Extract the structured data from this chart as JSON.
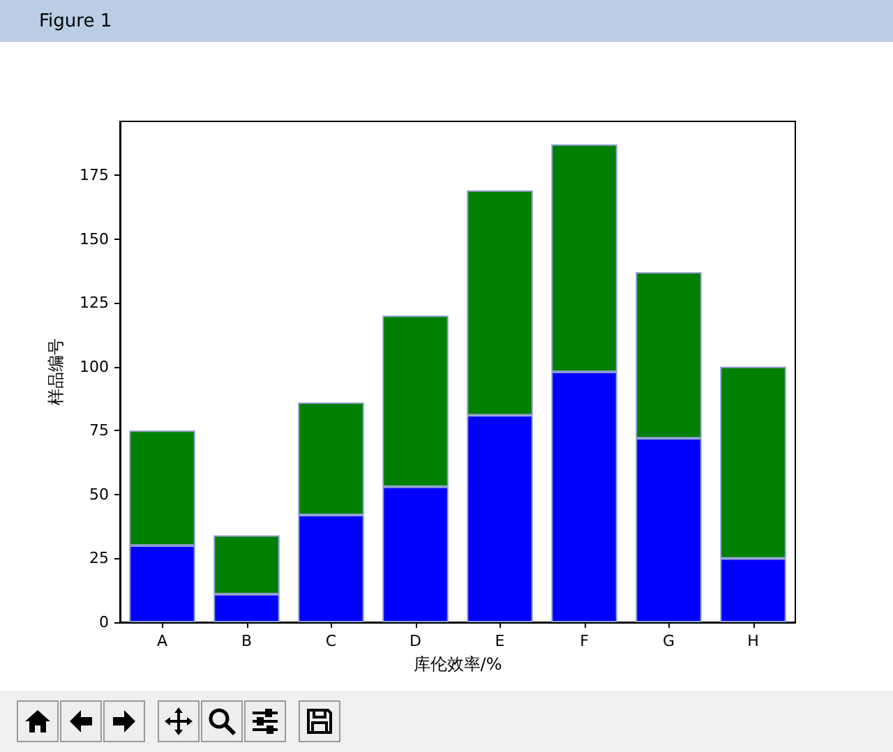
{
  "chart_data": {
    "type": "bar",
    "stacked": true,
    "xlabel": "库伦效率/%",
    "ylabel": "样品编号",
    "annotations": [
      "Figure 1"
    ],
    "categories": [
      "A",
      "B",
      "C",
      "D",
      "E",
      "F",
      "G",
      "H"
    ],
    "series": [
      {
        "color": "#0000ff",
        "values": [
          30,
          11,
          42,
          53,
          81,
          98,
          72,
          25
        ]
      },
      {
        "color": "#008000",
        "values": [
          45,
          23,
          44,
          67,
          88,
          89,
          65,
          75
        ]
      }
    ],
    "ylim": [
      0,
      196
    ],
    "yticks": [
      0,
      25,
      50,
      75,
      100,
      125,
      150,
      175
    ],
    "grid": false
  }
}
